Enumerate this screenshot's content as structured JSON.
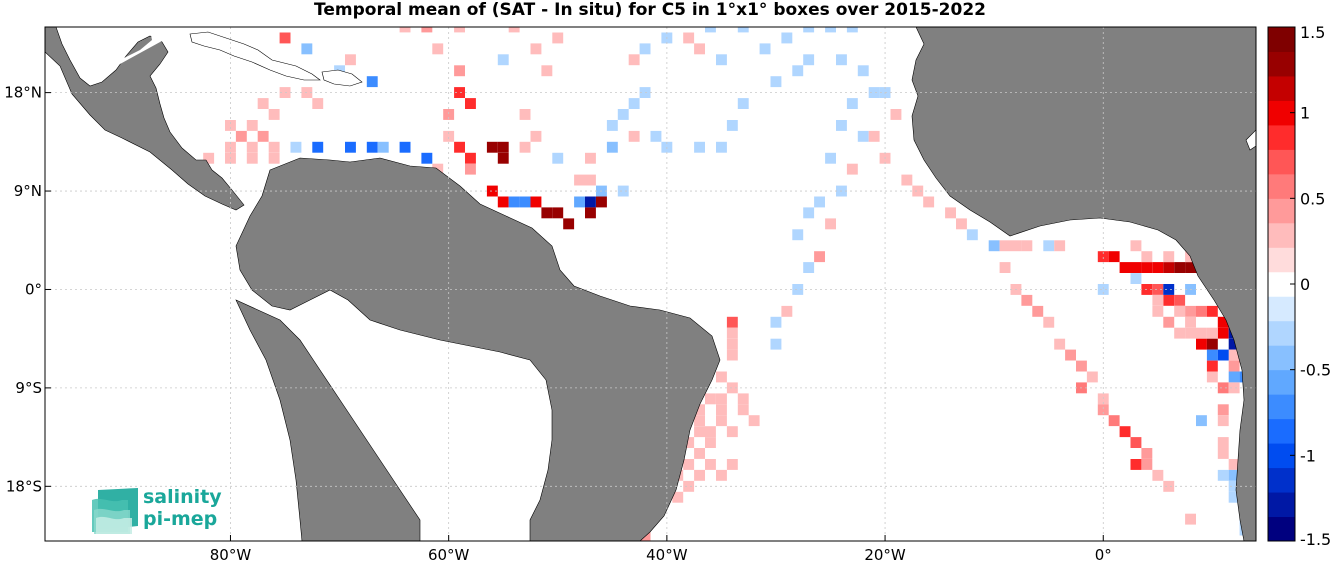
{
  "title": "Temporal mean of (SAT - In situ) for C5 in 1°x1° boxes over 2015-2022",
  "logo": {
    "line1": "salinity",
    "line2": "pi-mep"
  },
  "chart_data": {
    "type": "heatmap",
    "title": "Temporal mean of (SAT - In situ) for C5 in 1°x1° boxes over 2015-2022",
    "xlabel": "",
    "ylabel": "",
    "x_range": [
      -97,
      14
    ],
    "y_range": [
      -23,
      24
    ],
    "x_ticks": [
      {
        "value": -80,
        "label": "80°W"
      },
      {
        "value": -60,
        "label": "60°W"
      },
      {
        "value": -40,
        "label": "40°W"
      },
      {
        "value": -20,
        "label": "20°W"
      },
      {
        "value": 0,
        "label": "0°"
      }
    ],
    "y_ticks": [
      {
        "value": 18,
        "label": "18°N"
      },
      {
        "value": 9,
        "label": "9°N"
      },
      {
        "value": 0,
        "label": "0°"
      },
      {
        "value": -9,
        "label": "9°S"
      },
      {
        "value": -18,
        "label": "18°S"
      }
    ],
    "grid": true,
    "colorbar": {
      "range": [
        -1.5,
        1.5
      ],
      "ticks": [
        1.5,
        1,
        0.5,
        0,
        -0.5,
        -1,
        -1.5
      ],
      "labels": [
        "1.5",
        "1",
        "0.5",
        "0",
        "-0.5",
        "-1",
        "-1.5"
      ],
      "colors": [
        "#00007f",
        "#0018a5",
        "#0030cb",
        "#004cf0",
        "#1a6cff",
        "#3c8cff",
        "#60a8ff",
        "#88c0ff",
        "#b0d6ff",
        "#d6eaff",
        "#ffffff",
        "#ffdcdc",
        "#ffbcbc",
        "#ff9a9a",
        "#ff7a7a",
        "#ff5656",
        "#ff2c2c",
        "#f00000",
        "#c40000",
        "#980000",
        "#7f0000"
      ]
    },
    "cells": [
      [
        -75,
        23,
        0.7
      ],
      [
        -73,
        22,
        -0.4
      ],
      [
        -69,
        21,
        0.3
      ],
      [
        -70,
        20,
        -0.3
      ],
      [
        -67,
        19,
        -0.7
      ],
      [
        -75,
        18,
        0.3
      ],
      [
        -73,
        18,
        0.3
      ],
      [
        -72,
        17,
        0.3
      ],
      [
        -77,
        17,
        0.3
      ],
      [
        -76,
        16,
        0.3
      ],
      [
        -78,
        15,
        0.3
      ],
      [
        -80,
        15,
        0.3
      ],
      [
        -77,
        14,
        0.5
      ],
      [
        -79,
        14,
        0.5
      ],
      [
        -76,
        13,
        0.3
      ],
      [
        -78,
        13,
        0.3
      ],
      [
        -80,
        13,
        0.3
      ],
      [
        -78,
        12,
        0.3
      ],
      [
        -76,
        12,
        0.3
      ],
      [
        -80,
        12,
        0.3
      ],
      [
        -82,
        12,
        0.3
      ],
      [
        -74,
        13,
        -0.3
      ],
      [
        -72,
        13,
        -0.9
      ],
      [
        -69,
        13,
        -0.9
      ],
      [
        -67,
        13,
        -0.9
      ],
      [
        -64,
        13,
        -0.9
      ],
      [
        -66,
        13,
        -0.4
      ],
      [
        -62,
        12,
        -0.9
      ],
      [
        -61,
        11,
        0.3
      ],
      [
        -59,
        13,
        0.9
      ],
      [
        -58,
        12,
        0.9
      ],
      [
        -58,
        11,
        0.4
      ],
      [
        -60,
        14,
        0.3
      ],
      [
        -60,
        16,
        0.5
      ],
      [
        -59,
        18,
        0.9
      ],
      [
        -58,
        17,
        0.9
      ],
      [
        -59,
        20,
        0.5
      ],
      [
        -59,
        24,
        0.3
      ],
      [
        -61,
        22,
        0.3
      ],
      [
        -62,
        24,
        0.4
      ],
      [
        -64,
        24,
        0.3
      ],
      [
        -56,
        13,
        1.4
      ],
      [
        -55,
        13,
        1.4
      ],
      [
        -55,
        12,
        1.4
      ],
      [
        -56,
        9,
        1.1
      ],
      [
        -55,
        8,
        1.1
      ],
      [
        -54,
        8,
        -0.8
      ],
      [
        -53,
        8,
        -0.8
      ],
      [
        -52,
        8,
        1.1
      ],
      [
        -51,
        7,
        1.4
      ],
      [
        -50,
        7,
        1.4
      ],
      [
        -49,
        6,
        1.4
      ],
      [
        -48,
        8,
        -0.6
      ],
      [
        -47,
        8,
        -1.4
      ],
      [
        -46,
        8,
        1.4
      ],
      [
        -47,
        7,
        1.4
      ],
      [
        -53,
        13,
        0.3
      ],
      [
        -53,
        16,
        0.3
      ],
      [
        -52,
        14,
        0.3
      ],
      [
        -50,
        12,
        -0.3
      ],
      [
        -48,
        10,
        0.3
      ],
      [
        -46,
        9,
        -0.4
      ],
      [
        -44,
        9,
        -0.3
      ],
      [
        -47,
        10,
        0.3
      ],
      [
        -47,
        12,
        0.3
      ],
      [
        -45,
        13,
        -0.4
      ],
      [
        -45,
        15,
        -0.3
      ],
      [
        -44,
        16,
        -0.3
      ],
      [
        -43,
        17,
        -0.3
      ],
      [
        -42,
        18,
        -0.3
      ],
      [
        -43,
        14,
        0.3
      ],
      [
        -41,
        14,
        -0.3
      ],
      [
        -40,
        13,
        -0.3
      ],
      [
        -37,
        13,
        -0.3
      ],
      [
        -35,
        13,
        -0.3
      ],
      [
        -34,
        15,
        -0.3
      ],
      [
        -33,
        17,
        -0.3
      ],
      [
        -30,
        19,
        -0.3
      ],
      [
        -28,
        20,
        -0.3
      ],
      [
        -27,
        21,
        -0.3
      ],
      [
        -51,
        20,
        0.3
      ],
      [
        -50,
        23,
        0.3
      ],
      [
        -52,
        22,
        0.3
      ],
      [
        -55,
        21,
        -0.3
      ],
      [
        -54,
        24,
        0.3
      ],
      [
        -43,
        21,
        0.3
      ],
      [
        -42,
        22,
        -0.3
      ],
      [
        -40,
        23,
        -0.3
      ],
      [
        -38,
        23,
        0.3
      ],
      [
        -37,
        22,
        0.3
      ],
      [
        -35,
        21,
        -0.3
      ],
      [
        -36,
        24,
        -0.3
      ],
      [
        -33,
        24,
        -0.3
      ],
      [
        -31,
        22,
        -0.3
      ],
      [
        -29,
        23,
        -0.3
      ],
      [
        -27,
        24,
        -0.3
      ],
      [
        -25,
        24,
        -0.3
      ],
      [
        -23,
        24,
        -0.3
      ],
      [
        -24,
        21,
        -0.3
      ],
      [
        -22,
        20,
        -0.3
      ],
      [
        -21,
        18,
        -0.3
      ],
      [
        -23,
        17,
        -0.3
      ],
      [
        -24,
        15,
        -0.3
      ],
      [
        -22,
        14,
        -0.3
      ],
      [
        -25,
        12,
        -0.3
      ],
      [
        -23,
        11,
        0.3
      ],
      [
        -24,
        9,
        -0.3
      ],
      [
        -26,
        8,
        -0.3
      ],
      [
        -27,
        7,
        -0.3
      ],
      [
        -25,
        6,
        0.3
      ],
      [
        -28,
        5,
        -0.3
      ],
      [
        -26,
        3,
        0.5
      ],
      [
        -27,
        2,
        -0.3
      ],
      [
        -28,
        0,
        -0.3
      ],
      [
        -29,
        -2,
        0.3
      ],
      [
        -30,
        -3,
        -0.3
      ],
      [
        -30,
        -5,
        -0.3
      ],
      [
        -20,
        18,
        -0.3
      ],
      [
        -19,
        16,
        0.3
      ],
      [
        -21,
        14,
        0.3
      ],
      [
        -20,
        12,
        0.3
      ],
      [
        -18,
        10,
        0.3
      ],
      [
        -17,
        9,
        0.3
      ],
      [
        -16,
        8,
        0.3
      ],
      [
        -14,
        7,
        0.3
      ],
      [
        -13,
        6,
        0.3
      ],
      [
        -12,
        5,
        -0.3
      ],
      [
        -10,
        4,
        -0.4
      ],
      [
        -9,
        4,
        0.3
      ],
      [
        -8,
        4,
        0.3
      ],
      [
        -7,
        4,
        0.3
      ],
      [
        -5,
        4,
        -0.3
      ],
      [
        -4,
        4,
        0.3
      ],
      [
        -9,
        2,
        0.3
      ],
      [
        -8,
        0,
        0.3
      ],
      [
        -7,
        -1,
        0.5
      ],
      [
        -6,
        -2,
        0.5
      ],
      [
        -5,
        -3,
        0.3
      ],
      [
        -4,
        -5,
        0.3
      ],
      [
        -3,
        -6,
        0.5
      ],
      [
        -2,
        -7,
        0.4
      ],
      [
        -1,
        -8,
        0.3
      ],
      [
        -2,
        -9,
        0.6
      ],
      [
        0,
        3,
        0.9
      ],
      [
        1,
        3,
        1.0
      ],
      [
        2,
        2,
        1.0
      ],
      [
        3,
        2,
        1.0
      ],
      [
        4,
        2,
        1.1
      ],
      [
        5,
        2,
        1.0
      ],
      [
        6,
        2,
        1.2
      ],
      [
        7,
        2,
        1.3
      ],
      [
        8,
        2,
        1.3
      ],
      [
        9,
        2,
        1.2
      ],
      [
        10,
        3,
        1.3
      ],
      [
        10,
        2,
        1.0
      ],
      [
        11,
        1,
        0.3
      ],
      [
        3,
        4,
        0.3
      ],
      [
        4,
        3,
        0.3
      ],
      [
        6,
        3,
        0.3
      ],
      [
        8,
        3,
        0.3
      ],
      [
        4,
        0,
        0.9
      ],
      [
        5,
        0,
        0.7
      ],
      [
        6,
        -1,
        0.9
      ],
      [
        7,
        -1,
        0.7
      ],
      [
        5,
        -1,
        0.3
      ],
      [
        6,
        0,
        -1.2
      ],
      [
        8,
        0,
        -0.5
      ],
      [
        0,
        0,
        -0.3
      ],
      [
        3,
        1,
        -0.3
      ],
      [
        8,
        -2,
        0.5
      ],
      [
        7,
        -2,
        0.3
      ],
      [
        9,
        -2,
        0.6
      ],
      [
        10,
        -2,
        0.9
      ],
      [
        11,
        -3,
        1.0
      ],
      [
        11,
        -4,
        1.1
      ],
      [
        12,
        -4,
        -1.3
      ],
      [
        12,
        -5,
        -1.4
      ],
      [
        12,
        -6,
        0.3
      ],
      [
        8,
        -3,
        0.3
      ],
      [
        6,
        -3,
        0.4
      ],
      [
        5,
        -2,
        0.3
      ],
      [
        7,
        -4,
        0.3
      ],
      [
        8,
        -4,
        0.3
      ],
      [
        9,
        -4,
        0.3
      ],
      [
        10,
        -4,
        0.3
      ],
      [
        9,
        -5,
        1.0
      ],
      [
        10,
        -5,
        1.4
      ],
      [
        10,
        -6,
        -0.8
      ],
      [
        11,
        -6,
        -1.0
      ],
      [
        10,
        -7,
        0.9
      ],
      [
        12,
        -7,
        0.5
      ],
      [
        12,
        -8,
        -0.6
      ],
      [
        13,
        -8,
        -0.7
      ],
      [
        10,
        -8,
        0.3
      ],
      [
        11,
        -9,
        0.6
      ],
      [
        12,
        -9,
        0.3
      ],
      [
        11,
        -11,
        0.4
      ],
      [
        11,
        -12,
        0.3
      ],
      [
        0,
        -10,
        0.3
      ],
      [
        0,
        -11,
        0.4
      ],
      [
        1,
        -12,
        0.6
      ],
      [
        2,
        -13,
        0.9
      ],
      [
        3,
        -14,
        0.7
      ],
      [
        4,
        -15,
        0.5
      ],
      [
        3,
        -16,
        0.9
      ],
      [
        4,
        -16,
        0.5
      ],
      [
        5,
        -17,
        0.3
      ],
      [
        6,
        -18,
        0.3
      ],
      [
        8,
        -21,
        0.3
      ],
      [
        9,
        -12,
        -0.4
      ],
      [
        11,
        -14,
        0.3
      ],
      [
        11,
        -15,
        0.3
      ],
      [
        12,
        -16,
        0.3
      ],
      [
        11,
        -17,
        -0.3
      ],
      [
        12,
        -17,
        -0.4
      ],
      [
        12,
        -18,
        -0.3
      ],
      [
        12,
        -19,
        -0.3
      ],
      [
        13,
        -21,
        -0.3
      ],
      [
        13,
        -22,
        -0.3
      ],
      [
        -34,
        -3,
        0.7
      ],
      [
        -34,
        -4,
        0.3
      ],
      [
        -34,
        -5,
        0.3
      ],
      [
        -34,
        -6,
        0.3
      ],
      [
        -35,
        -8,
        0.3
      ],
      [
        -34,
        -9,
        0.3
      ],
      [
        -33,
        -10,
        0.3
      ],
      [
        -35,
        -10,
        0.3
      ],
      [
        -36,
        -10,
        0.3
      ],
      [
        -33,
        -11,
        0.3
      ],
      [
        -35,
        -11,
        0.3
      ],
      [
        -37,
        -11,
        0.3
      ],
      [
        -35,
        -12,
        0.3
      ],
      [
        -37,
        -12,
        0.3
      ],
      [
        -34,
        -13,
        0.3
      ],
      [
        -32,
        -12,
        0.3
      ],
      [
        -36,
        -13,
        0.3
      ],
      [
        -37,
        -13,
        0.3
      ],
      [
        -38,
        -14,
        0.3
      ],
      [
        -36,
        -14,
        0.3
      ],
      [
        -39,
        -15,
        0.3
      ],
      [
        -37,
        -15,
        0.3
      ],
      [
        -38,
        -16,
        0.3
      ],
      [
        -40,
        -16,
        0.3
      ],
      [
        -37,
        -17,
        0.3
      ],
      [
        -39,
        -17,
        0.3
      ],
      [
        -38,
        -18,
        0.3
      ],
      [
        -39,
        -19,
        0.3
      ],
      [
        -36,
        -16,
        0.3
      ],
      [
        -34,
        -16,
        0.3
      ],
      [
        -35,
        -17,
        0.3
      ],
      [
        -43,
        -22,
        0.5
      ],
      [
        -42,
        -22,
        0.4
      ],
      [
        -44,
        -23,
        0.3
      ],
      [
        -42,
        -23,
        0.5
      ]
    ]
  }
}
